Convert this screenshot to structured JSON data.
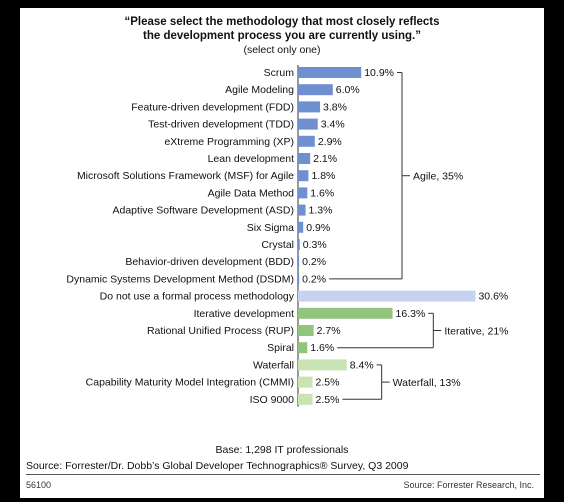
{
  "chart_data": {
    "type": "bar",
    "orientation": "horizontal",
    "title_line1": "“Please select the methodology that most closely reflects",
    "title_line2": "the development process you are currently using.”",
    "subtitle": "(select only one)",
    "categories": [
      "Scrum",
      "Agile Modeling",
      "Feature-driven development (FDD)",
      "Test-driven development (TDD)",
      "eXtreme Programming (XP)",
      "Lean development",
      "Microsoft Solutions Framework (MSF) for Agile",
      "Agile Data Method",
      "Adaptive Software Development (ASD)",
      "Six Sigma",
      "Crystal",
      "Behavior-driven development (BDD)",
      "Dynamic Systems Development Method (DSDM)",
      "Do not use a formal process methodology",
      "Iterative development",
      "Rational Unified Process (RUP)",
      "Spiral",
      "Waterfall",
      "Capability Maturity Model Integration (CMMI)",
      "ISO 9000"
    ],
    "values": [
      10.9,
      6.0,
      3.8,
      3.4,
      2.9,
      2.1,
      1.8,
      1.6,
      1.3,
      0.9,
      0.3,
      0.2,
      0.2,
      30.6,
      16.3,
      2.7,
      1.6,
      8.4,
      2.5,
      2.5
    ],
    "value_labels": [
      "10.9%",
      "6.0%",
      "3.8%",
      "3.4%",
      "2.9%",
      "2.1%",
      "1.8%",
      "1.6%",
      "1.3%",
      "0.9%",
      "0.3%",
      "0.2%",
      "0.2%",
      "30.6%",
      "16.3%",
      "2.7%",
      "1.6%",
      "8.4%",
      "2.5%",
      "2.5%"
    ],
    "groups": [
      {
        "label": "Agile, 35%",
        "start": 0,
        "end": 12,
        "color": "#6f8fd0"
      },
      {
        "label": "",
        "start": 13,
        "end": 13,
        "color": "#c5d3f0"
      },
      {
        "label": "Iterative, 21%",
        "start": 14,
        "end": 16,
        "color": "#93c47d"
      },
      {
        "label": "Waterfall, 13%",
        "start": 17,
        "end": 19,
        "color": "#c9e3b4"
      }
    ],
    "xlim": [
      0,
      31
    ],
    "grid": false
  },
  "footer": {
    "base": "Base: 1,298 IT professionals",
    "source": "Source: Forrester/Dr. Dobb’s Global Developer Technographics® Survey, Q3 2009",
    "id": "56100",
    "credit": "Source: Forrester Research, Inc."
  }
}
